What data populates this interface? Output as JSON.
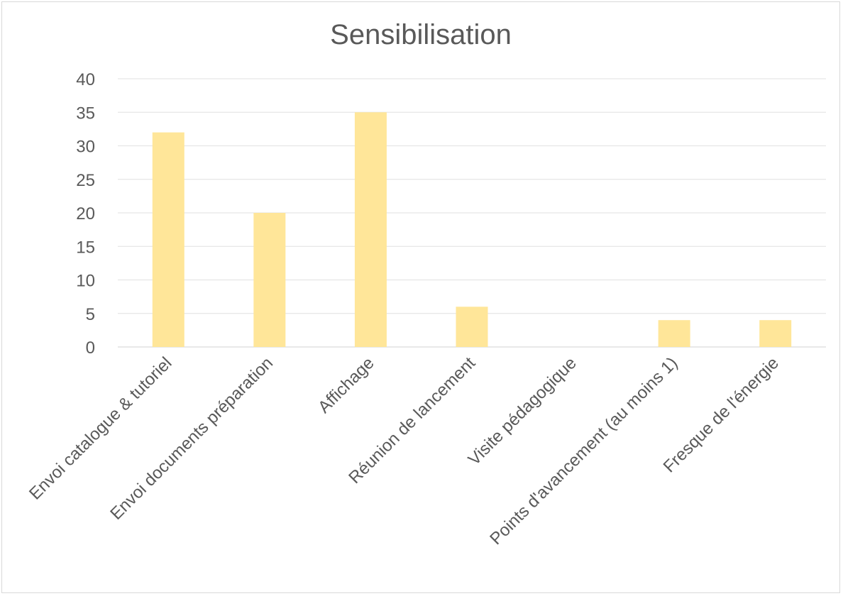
{
  "chart_data": {
    "type": "bar",
    "title": "Sensibilisation",
    "xlabel": "",
    "ylabel": "",
    "categories": [
      "Envoi catalogue & tutoriel",
      "Envoi documents préparation",
      "Affichage",
      "Réunion de lancement",
      "Visite pédagogique",
      "Points d'avancement (au moins 1)",
      "Fresque de l'énergie"
    ],
    "values": [
      32,
      20,
      35,
      6,
      0,
      4,
      4
    ],
    "ylim": [
      0,
      40
    ],
    "yticks": [
      0,
      5,
      10,
      15,
      20,
      25,
      30,
      35,
      40
    ],
    "grid": true,
    "legend": "none",
    "bar_color": "#FFE699"
  }
}
